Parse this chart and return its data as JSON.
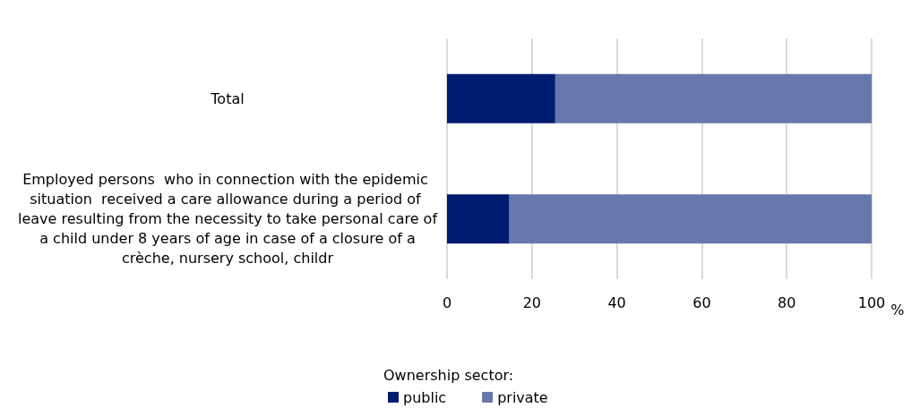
{
  "chart_data": {
    "type": "bar",
    "orientation": "horizontal",
    "stacked": true,
    "categories": [
      "Total",
      "Employed persons  who in connection with the epidemic situation  received a care allowance during a period of leave resulting from the necessity to take personal care of a child under 8 years of age in case of a closure of a crèche, nursery school, childr"
    ],
    "series": [
      {
        "name": "public",
        "color": "#001c71",
        "values": [
          25.5,
          14.7
        ]
      },
      {
        "name": "private",
        "color": "#6878ad",
        "values": [
          74.5,
          85.3
        ]
      }
    ],
    "xlim": [
      0,
      100
    ],
    "xticks": [
      0,
      20,
      40,
      60,
      80,
      100
    ],
    "xlabel": "%",
    "grid": "x",
    "legend": "bottom",
    "legend_title": "Ownership sector:"
  }
}
